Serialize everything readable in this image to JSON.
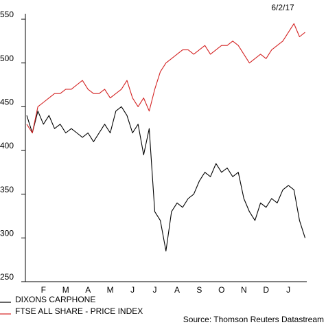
{
  "chart_data": {
    "type": "line",
    "date": "6/2/17",
    "source": "Source: Thomson Reuters Datastream",
    "categories": [
      null,
      null,
      null,
      "F",
      null,
      null,
      null,
      "M",
      null,
      null,
      null,
      "A",
      null,
      null,
      null,
      "M",
      null,
      null,
      null,
      "J",
      null,
      null,
      null,
      "J",
      null,
      null,
      null,
      "A",
      null,
      null,
      null,
      "S",
      null,
      null,
      null,
      "O",
      null,
      null,
      null,
      "N",
      null,
      null,
      null,
      "D",
      null,
      null,
      null,
      "J",
      null,
      null,
      null
    ],
    "series": [
      {
        "name": "DIXONS CARPHONE",
        "color": "#000000",
        "values": [
          440,
          420,
          445,
          430,
          440,
          425,
          430,
          420,
          425,
          420,
          415,
          420,
          410,
          420,
          430,
          420,
          445,
          450,
          440,
          420,
          430,
          395,
          425,
          330,
          320,
          285,
          330,
          340,
          335,
          345,
          350,
          365,
          375,
          370,
          385,
          375,
          380,
          370,
          375,
          345,
          330,
          320,
          340,
          335,
          345,
          340,
          355,
          360,
          355,
          320,
          300
        ]
      },
      {
        "name": "FTSE ALL SHARE - PRICE INDEX",
        "color": "#d42323",
        "values": [
          430,
          420,
          450,
          455,
          460,
          465,
          465,
          470,
          470,
          475,
          480,
          470,
          465,
          465,
          470,
          460,
          465,
          470,
          480,
          460,
          450,
          460,
          445,
          470,
          490,
          500,
          505,
          510,
          515,
          515,
          510,
          515,
          520,
          510,
          515,
          520,
          520,
          525,
          520,
          510,
          500,
          505,
          510,
          505,
          515,
          520,
          525,
          535,
          545,
          530,
          535
        ]
      }
    ],
    "ylim": [
      250,
      550
    ],
    "yticks": [
      250,
      300,
      350,
      400,
      450,
      500,
      550
    ]
  }
}
